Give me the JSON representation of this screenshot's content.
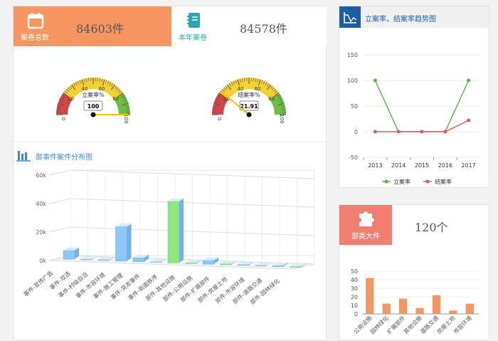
{
  "stats": {
    "total": {
      "label": "案卷总数",
      "value": "84603件",
      "icon": "calendar-icon",
      "color": "#f5955f"
    },
    "year": {
      "label": "本年案卷",
      "value": "84578件",
      "icon": "notebook-icon",
      "color": "#29a8b0"
    }
  },
  "gauges": [
    {
      "name": "立案率%",
      "value": 100,
      "value_text": "100",
      "min_label": "0",
      "max_label": "100",
      "ticks": [
        "20",
        "40",
        "60",
        "80"
      ]
    },
    {
      "name": "结案率%",
      "value": 21.91,
      "value_text": "21.91",
      "min_label": "0",
      "max_label": "100",
      "ticks": [
        "20",
        "40",
        "60",
        "80"
      ]
    }
  ],
  "distribution": {
    "title": "部事件案件分布图",
    "icon": "bar-chart-icon"
  },
  "trend": {
    "title": "立案率，结案率趋势图",
    "icon": "line-chart-icon"
  },
  "category": {
    "label": "部类大件",
    "value": "120个",
    "icon": "puzzle-icon",
    "color": "#f07f72"
  },
  "chart_data": [
    {
      "type": "bar",
      "title": "部事件案件分布图",
      "categories": [
        "事件-宣传广告",
        "事件-双违",
        "事件-村级自治",
        "事件-市容环境",
        "事件-施工管理",
        "事件-突发事件",
        "事件-街面秩序",
        "部件-其他设施",
        "部件-公用设施",
        "部件-扩展部件",
        "部件-房屋土地",
        "部件-市容环境",
        "部件-道路交通",
        "部件-园林绿化"
      ],
      "values": [
        6000,
        200,
        300,
        24000,
        2600,
        200,
        43000,
        300,
        2400,
        400,
        300,
        200,
        500,
        300
      ],
      "yticks": [
        "0k",
        "20k",
        "40k",
        "60k"
      ],
      "ylim": [
        0,
        60000
      ]
    },
    {
      "type": "line",
      "title": "立案率，结案率趋势图",
      "x": [
        "2013",
        "2014",
        "2015",
        "2016",
        "2017"
      ],
      "series": [
        {
          "name": "立案率",
          "values": [
            100,
            0,
            0,
            0,
            100
          ],
          "color": "#4cbb3c"
        },
        {
          "name": "结案率",
          "values": [
            0,
            0,
            0,
            0,
            22
          ],
          "color": "#e25a5a"
        }
      ],
      "yticks": [
        "150",
        "100",
        "50",
        "0",
        "-50"
      ],
      "ylim": [
        -50,
        150
      ]
    },
    {
      "type": "bar",
      "categories": [
        "公用设施",
        "园林绿化",
        "扩展部件",
        "其他设施",
        "道路交通",
        "房屋土地",
        "市容环境"
      ],
      "values": [
        42,
        12,
        18,
        7,
        22,
        4,
        12
      ],
      "yticks": [
        "50",
        "40",
        "30",
        "20",
        "10",
        "0"
      ],
      "ylim": [
        0,
        50
      ],
      "color": "#f5955f"
    }
  ]
}
